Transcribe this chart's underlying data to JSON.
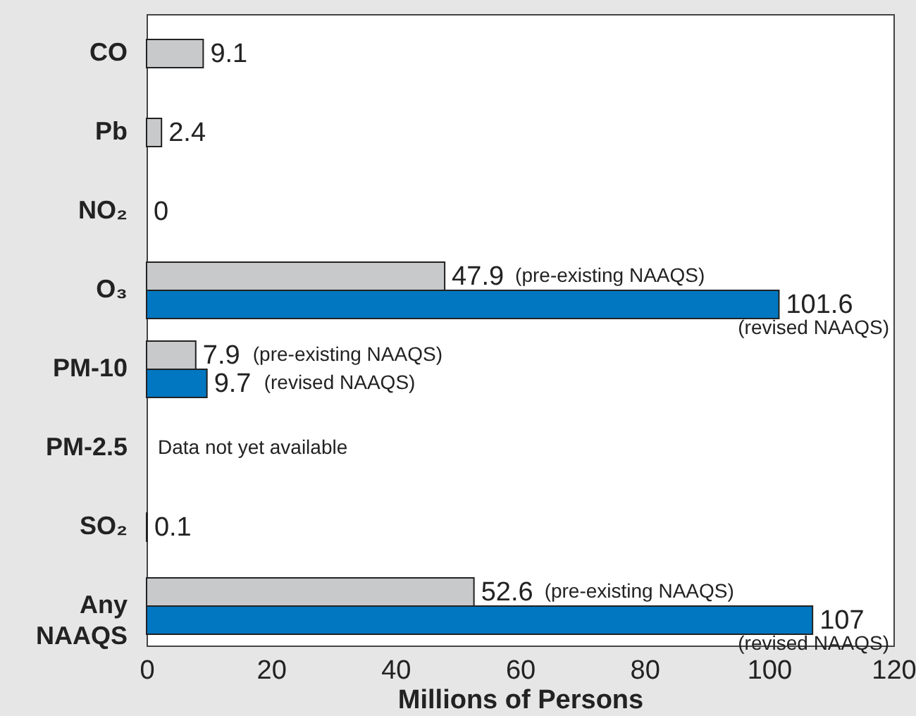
{
  "chart_data": {
    "type": "bar",
    "orientation": "horizontal",
    "xlabel": "Millions of Persons",
    "categories": [
      "CO",
      "Pb",
      "NO₂",
      "O₃",
      "PM-10",
      "PM-2.5",
      "SO₂",
      "Any NAAQS"
    ],
    "series": [
      {
        "color": "#c8c9cb",
        "values": [
          9.1,
          2.4,
          0,
          47.9,
          7.9,
          null,
          0.1,
          52.6
        ],
        "value_labels": [
          "9.1",
          "2.4",
          "0",
          "47.9 (pre-existing NAAQS)",
          "7.9 (pre-existing NAAQS)",
          null,
          "0.1",
          "52.6 (pre-existing NAAQS)"
        ]
      },
      {
        "color": "#0077c0",
        "values": [
          null,
          null,
          null,
          101.6,
          9.7,
          null,
          null,
          107
        ],
        "value_labels": [
          null,
          null,
          null,
          "101.6 (revised NAAQS)",
          "9.7 (revised NAAQS)",
          null,
          null,
          "107 (revised NAAQS)"
        ]
      }
    ],
    "xlim": [
      0,
      120
    ],
    "xticks": [
      0,
      20,
      40,
      60,
      80,
      100,
      120
    ],
    "grid": false,
    "annotations": [
      "Data not yet available"
    ]
  }
}
